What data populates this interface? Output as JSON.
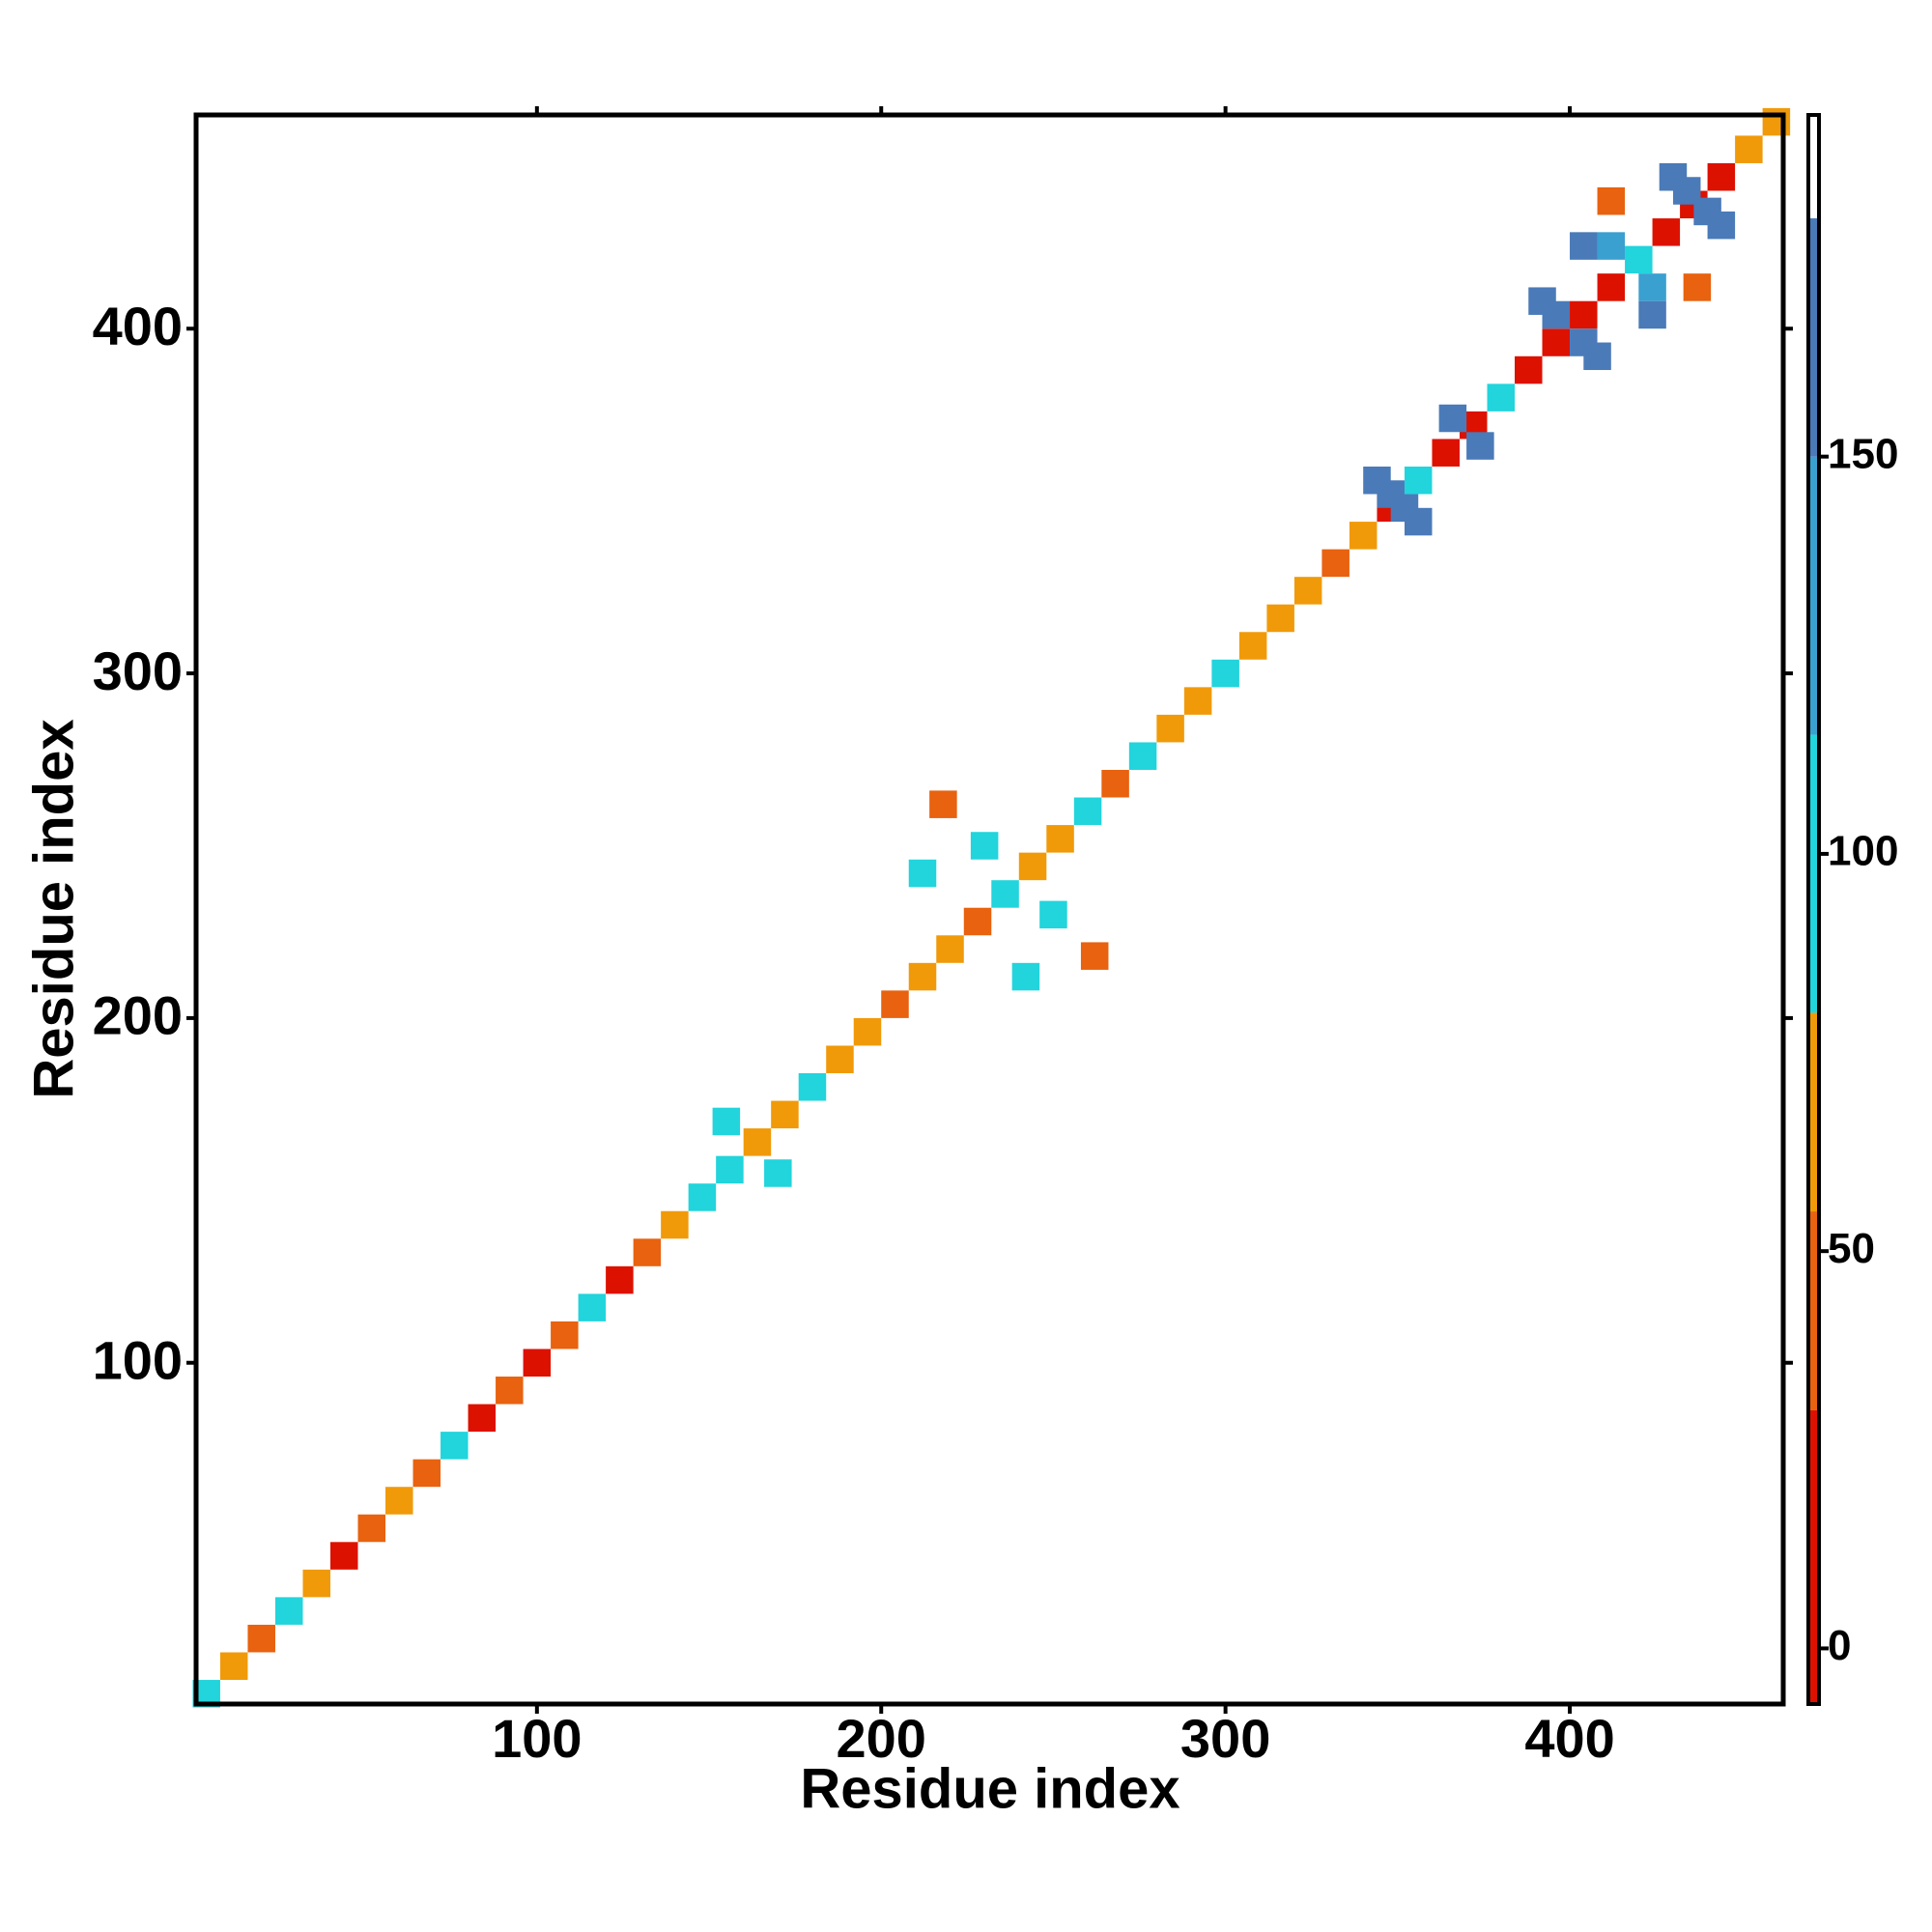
{
  "chart_data": {
    "type": "heatmap",
    "xlabel": "Residue index",
    "ylabel": "Residue index",
    "xlim": [
      1,
      462
    ],
    "ylim": [
      1,
      462
    ],
    "xticks": [
      100,
      200,
      300,
      400
    ],
    "yticks": [
      100,
      200,
      300,
      400
    ],
    "x": [
      4,
      12,
      20,
      28,
      36,
      44,
      52,
      60,
      68,
      76,
      84,
      92,
      100,
      108,
      116,
      124,
      132,
      140,
      148,
      156,
      164,
      172,
      180,
      188,
      196,
      204,
      212,
      220,
      228,
      236,
      244,
      252,
      260,
      268,
      276,
      284,
      292,
      300,
      308,
      316,
      324,
      332,
      340,
      348,
      356,
      364,
      372,
      380,
      388,
      396,
      404,
      412,
      420,
      428,
      436,
      444,
      452,
      460,
      344,
      348,
      352,
      356,
      366,
      374,
      392,
      396,
      404,
      408,
      412,
      424,
      430,
      434,
      440,
      444,
      404,
      424,
      412,
      437,
      155,
      170,
      218,
      262,
      212,
      242,
      230,
      250
    ],
    "y": [
      4,
      12,
      20,
      28,
      36,
      44,
      52,
      60,
      68,
      76,
      84,
      92,
      100,
      108,
      116,
      124,
      132,
      140,
      148,
      156,
      164,
      172,
      180,
      188,
      196,
      204,
      212,
      220,
      228,
      236,
      244,
      252,
      260,
      268,
      276,
      284,
      292,
      300,
      308,
      316,
      324,
      332,
      340,
      348,
      356,
      364,
      372,
      380,
      388,
      396,
      404,
      412,
      420,
      428,
      436,
      444,
      452,
      460,
      356,
      352,
      348,
      344,
      374,
      366,
      408,
      404,
      396,
      392,
      424,
      412,
      444,
      440,
      434,
      430,
      424,
      404,
      437,
      412,
      170,
      155,
      262,
      218,
      242,
      212,
      250,
      230
    ],
    "values": [
      90,
      65,
      40,
      90,
      65,
      20,
      40,
      70,
      30,
      90,
      20,
      35,
      20,
      40,
      90,
      20,
      30,
      70,
      95,
      90,
      70,
      70,
      95,
      70,
      70,
      40,
      70,
      70,
      40,
      95,
      70,
      70,
      95,
      30,
      95,
      70,
      70,
      95,
      70,
      70,
      70,
      40,
      65,
      20,
      95,
      20,
      20,
      95,
      20,
      10,
      20,
      10,
      95,
      10,
      20,
      10,
      70,
      70,
      160,
      160,
      160,
      160,
      160,
      160,
      160,
      160,
      160,
      160,
      120,
      120,
      160,
      160,
      160,
      160,
      150,
      150,
      50,
      50,
      95,
      95,
      45,
      45,
      95,
      95,
      90,
      90
    ],
    "colorbar": {
      "lim": [
        -7,
        193
      ],
      "ticks": [
        0,
        50,
        100,
        150
      ],
      "bounds": [
        -7,
        30,
        55,
        80,
        115,
        150,
        180,
        193
      ],
      "colors": [
        "#dd1100",
        "#e8620f",
        "#f09a0a",
        "#22d4dc",
        "#3aa0d0",
        "#4a7ab8",
        "#ffffff"
      ]
    }
  }
}
